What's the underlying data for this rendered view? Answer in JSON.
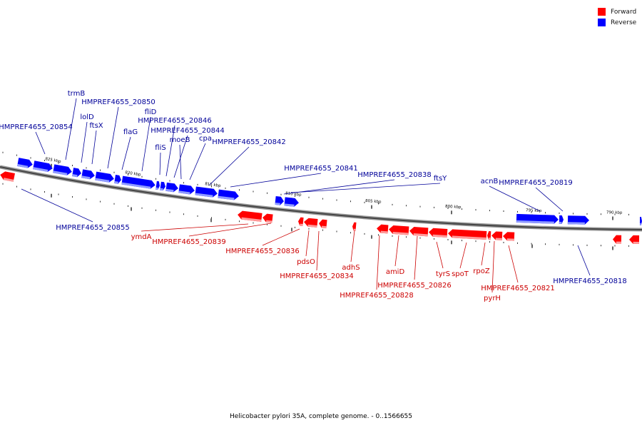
{
  "caption": "Helicobacter pylori 35A, complete genome. - 0..1566655",
  "legend": {
    "forward": {
      "label": "Forward",
      "color": "#ff0000"
    },
    "reverse": {
      "label": "Reverse",
      "color": "#0000ff"
    }
  },
  "ticks": [
    {
      "kbp": 825,
      "label": "825 kbp"
    },
    {
      "kbp": 820,
      "label": "820 kbp"
    },
    {
      "kbp": 815,
      "label": "815 kbp"
    },
    {
      "kbp": 810,
      "label": "810 kbp"
    },
    {
      "kbp": 805,
      "label": "805 kbp"
    },
    {
      "kbp": 800,
      "label": "800 kbp"
    },
    {
      "kbp": 795,
      "label": "795 kbp"
    },
    {
      "kbp": 790,
      "label": "790 kbp"
    }
  ],
  "genes": [
    {
      "name": "HMPREF4655_20855",
      "strand": "reverse"
    },
    {
      "name": "HMPREF4655_20854",
      "strand": "reverse"
    },
    {
      "name": "trmB",
      "strand": "reverse"
    },
    {
      "name": "lolD",
      "strand": "reverse"
    },
    {
      "name": "ftsX",
      "strand": "reverse"
    },
    {
      "name": "HMPREF4655_20850",
      "strand": "reverse"
    },
    {
      "name": "flaG",
      "strand": "reverse"
    },
    {
      "name": "fliD",
      "strand": "reverse"
    },
    {
      "name": "fliS",
      "strand": "reverse"
    },
    {
      "name": "HMPREF4655_20846",
      "strand": "reverse"
    },
    {
      "name": "HMPREF4655_20844",
      "strand": "reverse"
    },
    {
      "name": "moeB",
      "strand": "reverse"
    },
    {
      "name": "cpa",
      "strand": "reverse"
    },
    {
      "name": "HMPREF4655_20842",
      "strand": "reverse"
    },
    {
      "name": "HMPREF4655_20841",
      "strand": "reverse"
    },
    {
      "name": "HMPREF4655_20838",
      "strand": "reverse"
    },
    {
      "name": "ftsY",
      "strand": "reverse"
    },
    {
      "name": "acnB",
      "strand": "reverse"
    },
    {
      "name": "HMPREF4655_20819",
      "strand": "reverse"
    },
    {
      "name": "HMPREF4655_20818",
      "strand": "reverse"
    },
    {
      "name": "ymdA",
      "strand": "forward"
    },
    {
      "name": "HMPREF4655_20839",
      "strand": "forward"
    },
    {
      "name": "HMPREF4655_20836",
      "strand": "forward"
    },
    {
      "name": "pdsO",
      "strand": "forward"
    },
    {
      "name": "HMPREF4655_20834",
      "strand": "forward"
    },
    {
      "name": "adhS",
      "strand": "forward"
    },
    {
      "name": "HMPREF4655_20828",
      "strand": "forward"
    },
    {
      "name": "amiD",
      "strand": "forward"
    },
    {
      "name": "HMPREF4655_20826",
      "strand": "forward"
    },
    {
      "name": "tyrS",
      "strand": "forward"
    },
    {
      "name": "spoT",
      "strand": "forward"
    },
    {
      "name": "rpoZ",
      "strand": "forward"
    },
    {
      "name": "HMPREF4655_20821",
      "strand": "forward"
    },
    {
      "name": "pyrH",
      "strand": "forward"
    }
  ]
}
